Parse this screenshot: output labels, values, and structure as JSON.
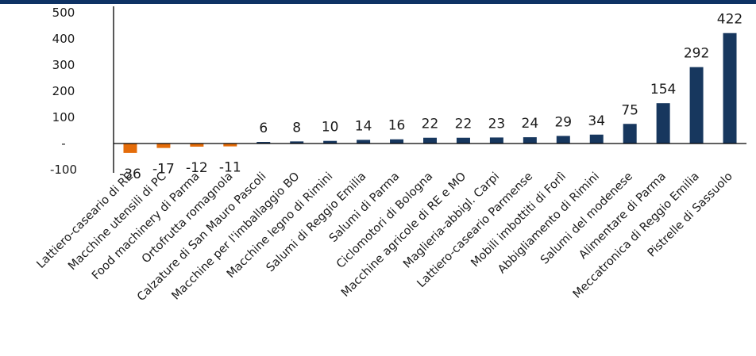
{
  "chart_data": {
    "type": "bar",
    "title": "",
    "xlabel": "",
    "ylabel": "",
    "ylim": [
      -100,
      500
    ],
    "yticks": [
      -100,
      0,
      100,
      200,
      300,
      400,
      500
    ],
    "ytick_labels": [
      "-100",
      "-",
      "100",
      "200",
      "300",
      "400",
      "500"
    ],
    "categories": [
      "Lattiero-caseario di RE",
      "Macchine utensili di PC",
      "Food machinery di Parma",
      "Ortofrutta romagnola",
      "Calzature di San Mauro Pascoli",
      "Macchine per l'imballaggio BO",
      "Macchine legno di Rimini",
      "Salumi di Reggio Emilia",
      "Salumi di Parma",
      "Ciclomotori di Bologna",
      "Macchine agricole di RE e MO",
      "Maglieria-abbigl. Carpi",
      "Lattiero-caseario Parmense",
      "Mobili imbottiti di Forlì",
      "Abbigliamento di Rimini",
      "Salumi del modenese",
      "Alimentare di Parma",
      "Meccatronica di Reggio Emilia",
      "Pistrelle di Sassuolo"
    ],
    "values": [
      -36,
      -17,
      -12,
      -11,
      6,
      8,
      10,
      14,
      16,
      22,
      22,
      23,
      24,
      29,
      34,
      75,
      154,
      292,
      422
    ],
    "value_labels": [
      "-36",
      "-17",
      "-12",
      "-11",
      "6",
      "8",
      "10",
      "14",
      "16",
      "22",
      "22",
      "23",
      "24",
      "29",
      "34",
      "75",
      "154",
      "292",
      "422"
    ],
    "colors": {
      "positive": "#17375e",
      "negative": "#e46c0a",
      "accent_band": "#0e3264"
    },
    "grid": false,
    "legend": "none"
  }
}
